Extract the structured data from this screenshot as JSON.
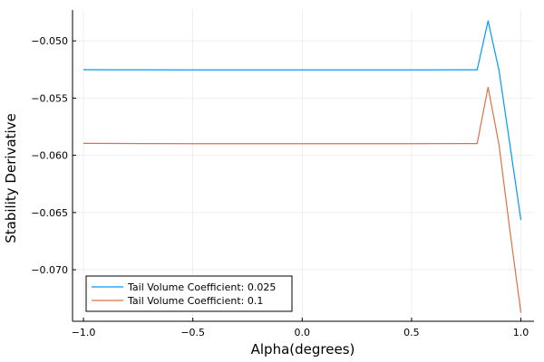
{
  "chart_data": {
    "type": "line",
    "xlabel": "Alpha(degrees)",
    "ylabel": "Stability Derivative",
    "xlim": [
      -1.05,
      1.06
    ],
    "ylim": [
      -0.0745,
      -0.0473
    ],
    "xticks": [
      -1.0,
      -0.5,
      0.0,
      0.5,
      1.0
    ],
    "xtick_labels": [
      "−1.0",
      "−0.5",
      "0.0",
      "0.5",
      "1.0"
    ],
    "yticks": [
      -0.05,
      -0.055,
      -0.06,
      -0.065,
      -0.07
    ],
    "ytick_labels": [
      "−0.050",
      "−0.055",
      "−0.060",
      "−0.065",
      "−0.070"
    ],
    "grid": true,
    "legend_position": "bottom-left",
    "series": [
      {
        "name": "Tail Volume Coefficient: 0.025",
        "color": "#009AFA",
        "x": [
          -1.0,
          -0.75,
          -0.5,
          -0.25,
          0.0,
          0.25,
          0.5,
          0.75,
          0.8,
          0.85,
          0.9,
          0.95,
          1.0
        ],
        "y": [
          -0.05252,
          -0.05253,
          -0.05254,
          -0.05254,
          -0.05254,
          -0.05254,
          -0.05254,
          -0.05253,
          -0.05253,
          -0.04825,
          -0.0526,
          -0.0591,
          -0.06565
        ]
      },
      {
        "name": "Tail Volume Coefficient: 0.1",
        "color": "#E26F46",
        "x": [
          -1.0,
          -0.75,
          -0.5,
          -0.25,
          0.0,
          0.25,
          0.5,
          0.75,
          0.8,
          0.85,
          0.9,
          0.95,
          1.0
        ],
        "y": [
          -0.05895,
          -0.05897,
          -0.05898,
          -0.05898,
          -0.05898,
          -0.05898,
          -0.05898,
          -0.05897,
          -0.05897,
          -0.05405,
          -0.0591,
          -0.0666,
          -0.07375
        ]
      }
    ]
  }
}
